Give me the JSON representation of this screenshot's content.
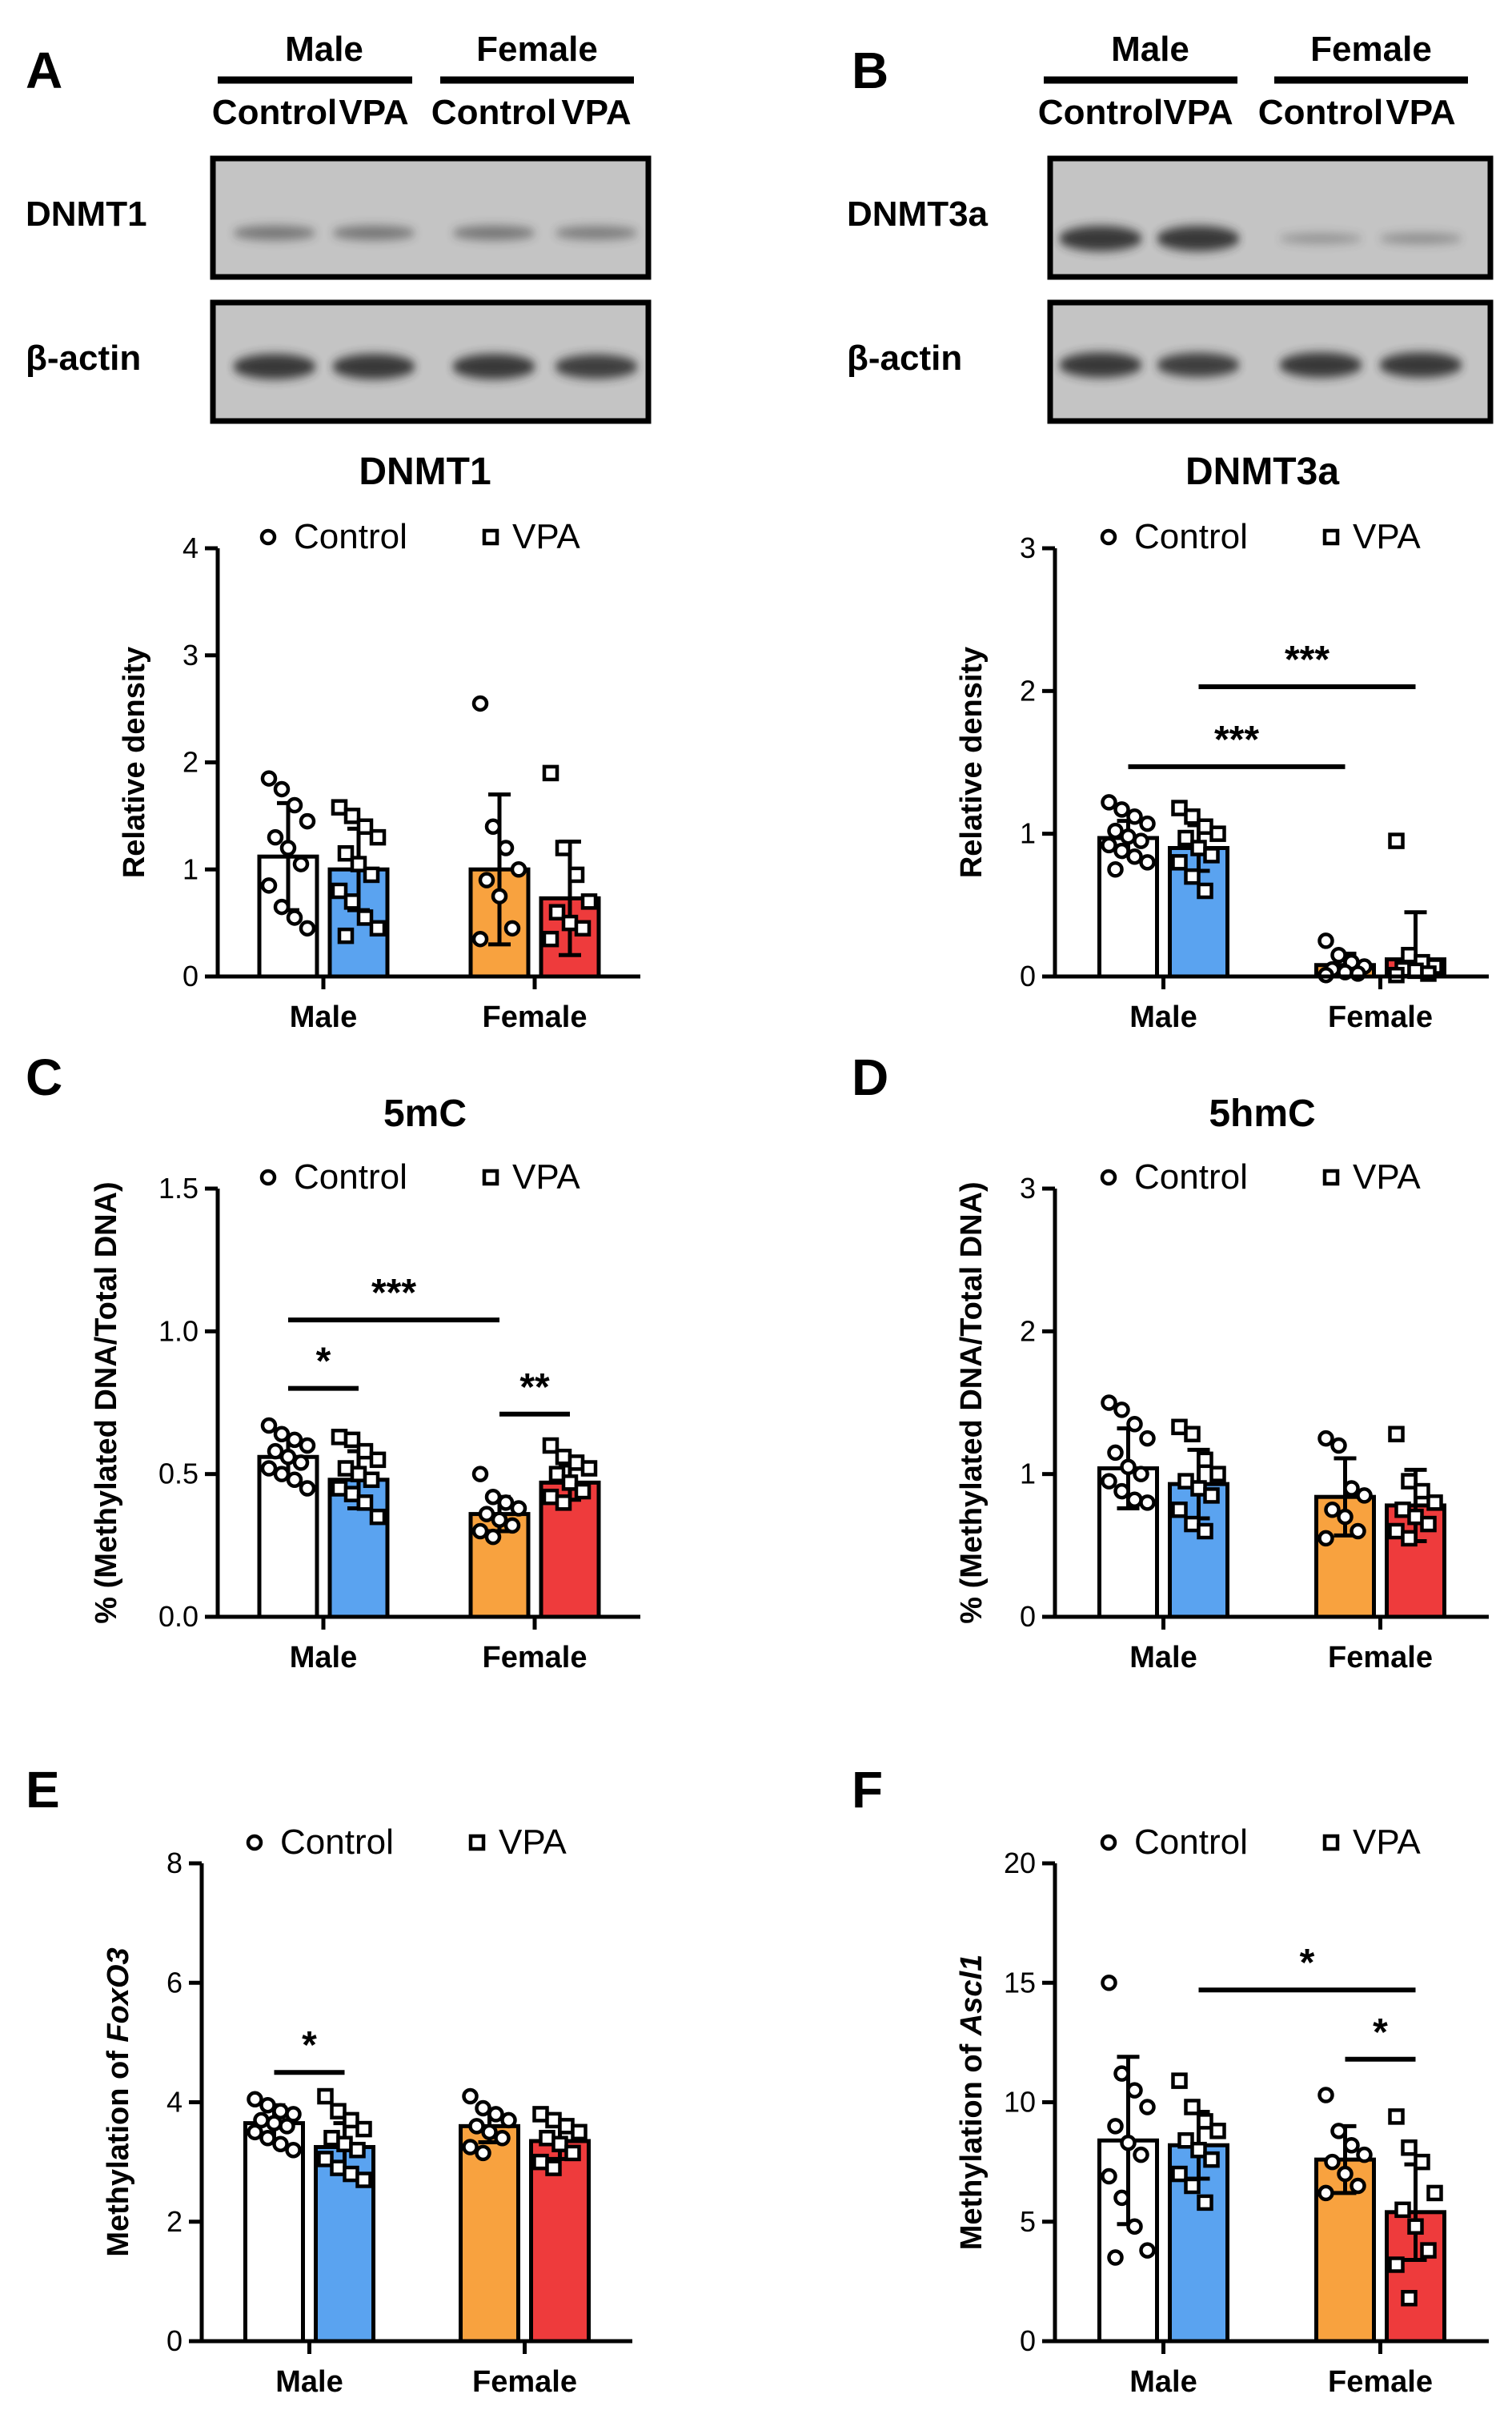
{
  "colors": {
    "Male Control": "#ffffff",
    "Male VPA": "#5aa3f0",
    "Female Control": "#f8a23f",
    "Female VPA": "#ee3b3c",
    "outline": "#000000",
    "blot_bg": "#c4c4c4",
    "band": "#2d2d2d"
  },
  "blots": [
    {
      "letter": "A",
      "groups": [
        "Male",
        "Female"
      ],
      "lanes": [
        "Control",
        "VPA",
        "Control",
        "VPA"
      ],
      "rows": [
        {
          "label": "DNMT1",
          "band_intensity": [
            0.35,
            0.35,
            0.35,
            0.3
          ]
        },
        {
          "label": "β-actin",
          "band_intensity": [
            0.9,
            0.9,
            0.9,
            0.85
          ]
        }
      ]
    },
    {
      "letter": "B",
      "groups": [
        "Male",
        "Female"
      ],
      "lanes": [
        "Control",
        "VPA",
        "Control",
        "VPA"
      ],
      "rows": [
        {
          "label": "DNMT3a",
          "band_intensity": [
            0.9,
            0.9,
            0.1,
            0.15
          ]
        },
        {
          "label": "β-actin",
          "band_intensity": [
            0.9,
            0.85,
            0.9,
            0.9
          ]
        }
      ]
    }
  ],
  "legend": {
    "control": "Control",
    "vpa": "VPA"
  },
  "chart_data": [
    {
      "id": "dnmt1",
      "type": "bar",
      "letter": "",
      "title": "DNMT1",
      "ylabel": "Relative density",
      "ylabel_italic": "",
      "ylim": [
        0,
        4
      ],
      "yticks": [
        "0",
        "1",
        "2",
        "3",
        "4"
      ],
      "categories": [
        "Male",
        "Female"
      ],
      "series": [
        {
          "name": "Control",
          "means": [
            1.12,
            1.0
          ],
          "sd": [
            0.5,
            0.7
          ],
          "points": [
            [
              1.85,
              1.75,
              1.6,
              1.45,
              1.3,
              1.2,
              1.05,
              0.85,
              0.65,
              0.55,
              0.45
            ],
            [
              2.55,
              1.4,
              1.2,
              1.0,
              0.9,
              0.75,
              0.45,
              0.35
            ]
          ]
        },
        {
          "name": "VPA",
          "means": [
            1.0,
            0.73
          ],
          "sd": [
            0.38,
            0.53
          ],
          "points": [
            [
              1.58,
              1.5,
              1.4,
              1.3,
              1.15,
              1.05,
              0.95,
              0.8,
              0.7,
              0.55,
              0.45,
              0.38
            ],
            [
              1.9,
              1.2,
              0.95,
              0.7,
              0.6,
              0.5,
              0.45,
              0.35
            ]
          ]
        }
      ],
      "significance": []
    },
    {
      "id": "dnmt3a",
      "type": "bar",
      "letter": "",
      "title": "DNMT3a",
      "ylabel": "Relative density",
      "ylabel_italic": "",
      "ylim": [
        0,
        3
      ],
      "yticks": [
        "0",
        "1",
        "2",
        "3"
      ],
      "categories": [
        "Male",
        "Female"
      ],
      "series": [
        {
          "name": "Control",
          "means": [
            0.97,
            0.08
          ],
          "sd": [
            0.12,
            0.08
          ],
          "points": [
            [
              1.22,
              1.17,
              1.12,
              1.07,
              1.02,
              0.98,
              0.95,
              0.92,
              0.88,
              0.84,
              0.8,
              0.75
            ],
            [
              0.25,
              0.15,
              0.1,
              0.07,
              0.05,
              0.03,
              0.02,
              0.01
            ]
          ]
        },
        {
          "name": "VPA",
          "means": [
            0.9,
            0.12
          ],
          "sd": [
            0.16,
            0.33
          ],
          "points": [
            [
              1.18,
              1.12,
              1.05,
              1.0,
              0.97,
              0.9,
              0.85,
              0.8,
              0.7,
              0.6
            ],
            [
              0.95,
              0.15,
              0.1,
              0.07,
              0.05,
              0.04,
              0.02,
              0.01
            ]
          ]
        }
      ],
      "significance": [
        {
          "from": [
            "Male",
            "Control"
          ],
          "to": [
            "Female",
            "Control"
          ],
          "y": 1.47,
          "label": "***"
        },
        {
          "from": [
            "Male",
            "VPA"
          ],
          "to": [
            "Female",
            "VPA"
          ],
          "y": 2.03,
          "label": "***"
        }
      ]
    },
    {
      "id": "5mc",
      "type": "bar",
      "letter": "C",
      "title": "5mC",
      "ylabel": "% (Methylated DNA/Total DNA)",
      "ylabel_italic": "",
      "ylim": [
        0,
        1.5
      ],
      "yticks": [
        "0.0",
        "0.5",
        "1.0",
        "1.5"
      ],
      "categories": [
        "Male",
        "Female"
      ],
      "series": [
        {
          "name": "Control",
          "means": [
            0.56,
            0.36
          ],
          "sd": [
            0.07,
            0.06
          ],
          "points": [
            [
              0.67,
              0.64,
              0.62,
              0.6,
              0.58,
              0.56,
              0.54,
              0.52,
              0.5,
              0.48,
              0.45
            ],
            [
              0.5,
              0.42,
              0.4,
              0.38,
              0.36,
              0.34,
              0.32,
              0.3,
              0.28
            ]
          ]
        },
        {
          "name": "VPA",
          "means": [
            0.48,
            0.47
          ],
          "sd": [
            0.1,
            0.06
          ],
          "points": [
            [
              0.63,
              0.62,
              0.58,
              0.55,
              0.52,
              0.5,
              0.48,
              0.45,
              0.43,
              0.4,
              0.35
            ],
            [
              0.6,
              0.56,
              0.54,
              0.52,
              0.5,
              0.47,
              0.44,
              0.42,
              0.4
            ]
          ]
        }
      ],
      "significance": [
        {
          "from": [
            "Male",
            "Control"
          ],
          "to": [
            "Female",
            "Control"
          ],
          "y": 1.04,
          "label": "***"
        },
        {
          "from": [
            "Male",
            "Control"
          ],
          "to": [
            "Male",
            "VPA"
          ],
          "y": 0.8,
          "label": "*"
        },
        {
          "from": [
            "Female",
            "Control"
          ],
          "to": [
            "Female",
            "VPA"
          ],
          "y": 0.71,
          "label": "**"
        }
      ]
    },
    {
      "id": "5hmc",
      "type": "bar",
      "letter": "D",
      "title": "5hmC",
      "ylabel": "% (Methylated DNA/Total DNA)",
      "ylabel_italic": "",
      "ylim": [
        0,
        3
      ],
      "yticks": [
        "0",
        "1",
        "2",
        "3"
      ],
      "categories": [
        "Male",
        "Female"
      ],
      "series": [
        {
          "name": "Control",
          "means": [
            1.04,
            0.84
          ],
          "sd": [
            0.28,
            0.27
          ],
          "points": [
            [
              1.5,
              1.45,
              1.35,
              1.25,
              1.15,
              1.05,
              1.0,
              0.95,
              0.88,
              0.82,
              0.8
            ],
            [
              1.25,
              1.2,
              0.9,
              0.85,
              0.75,
              0.7,
              0.6,
              0.55
            ]
          ]
        },
        {
          "name": "VPA",
          "means": [
            0.93,
            0.78
          ],
          "sd": [
            0.24,
            0.25
          ],
          "points": [
            [
              1.33,
              1.28,
              1.1,
              1.0,
              0.95,
              0.9,
              0.85,
              0.75,
              0.65,
              0.6
            ],
            [
              1.28,
              0.95,
              0.88,
              0.8,
              0.75,
              0.7,
              0.65,
              0.6,
              0.55
            ]
          ]
        }
      ],
      "significance": []
    },
    {
      "id": "foxo3",
      "type": "bar",
      "letter": "E",
      "title": "",
      "ylabel": "Methylation of ",
      "ylabel_italic": "FoxO3",
      "ylim": [
        0,
        8
      ],
      "yticks": [
        "0",
        "2",
        "4",
        "6",
        "8"
      ],
      "categories": [
        "Male",
        "Female"
      ],
      "series": [
        {
          "name": "Control",
          "means": [
            3.65,
            3.6
          ],
          "sd": [
            0.3,
            0.27
          ],
          "points": [
            [
              4.05,
              3.95,
              3.85,
              3.8,
              3.7,
              3.65,
              3.6,
              3.5,
              3.4,
              3.3,
              3.2
            ],
            [
              4.1,
              3.9,
              3.8,
              3.7,
              3.6,
              3.5,
              3.4,
              3.25,
              3.15
            ]
          ]
        },
        {
          "name": "VPA",
          "means": [
            3.25,
            3.35
          ],
          "sd": [
            0.4,
            0.3
          ],
          "points": [
            [
              4.1,
              3.85,
              3.7,
              3.55,
              3.4,
              3.3,
              3.2,
              3.05,
              2.9,
              2.8,
              2.7
            ],
            [
              3.8,
              3.7,
              3.6,
              3.5,
              3.4,
              3.3,
              3.15,
              3.0,
              2.9
            ]
          ]
        }
      ],
      "significance": [
        {
          "from": [
            "Male",
            "Control"
          ],
          "to": [
            "Male",
            "VPA"
          ],
          "y": 4.5,
          "label": "*"
        }
      ]
    },
    {
      "id": "ascl1",
      "type": "bar",
      "letter": "F",
      "title": "",
      "ylabel": "Methylation of ",
      "ylabel_italic": "Ascl1",
      "ylim": [
        0,
        20
      ],
      "yticks": [
        "0",
        "5",
        "10",
        "15",
        "20"
      ],
      "categories": [
        "Male",
        "Female"
      ],
      "series": [
        {
          "name": "Control",
          "means": [
            8.4,
            7.6
          ],
          "sd": [
            3.5,
            1.4
          ],
          "points": [
            [
              15.0,
              11.2,
              10.5,
              9.8,
              9.0,
              8.3,
              7.8,
              6.9,
              6.0,
              4.8,
              3.8,
              3.5
            ],
            [
              10.3,
              8.8,
              8.2,
              7.8,
              7.5,
              7.0,
              6.5,
              6.2
            ]
          ]
        },
        {
          "name": "VPA",
          "means": [
            8.2,
            5.4
          ],
          "sd": [
            1.4,
            2.0
          ],
          "points": [
            [
              10.9,
              9.8,
              9.2,
              8.8,
              8.4,
              8.0,
              7.6,
              7.0,
              6.5,
              5.8
            ],
            [
              9.4,
              8.1,
              7.5,
              6.2,
              5.5,
              4.8,
              3.8,
              3.2,
              1.8
            ]
          ]
        }
      ],
      "significance": [
        {
          "from": [
            "Male",
            "VPA"
          ],
          "to": [
            "Female",
            "VPA"
          ],
          "y": 14.7,
          "label": "*"
        },
        {
          "from": [
            "Female",
            "Control"
          ],
          "to": [
            "Female",
            "VPA"
          ],
          "y": 11.8,
          "label": "*"
        }
      ]
    }
  ]
}
